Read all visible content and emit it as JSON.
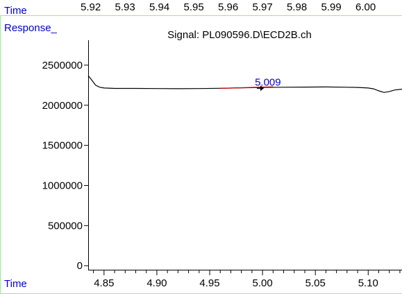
{
  "top_axis": {
    "label": "Time",
    "ticks": [
      "5.92",
      "5.93",
      "5.94",
      "5.95",
      "5.96",
      "5.97",
      "5.98",
      "5.99",
      "6.00"
    ]
  },
  "colors": {
    "frame": "#90ee90",
    "axis_label": "#0000cd",
    "trace": "#000000",
    "baseline": "#cc0000",
    "peak_label": "#0000cd"
  },
  "chart_data": {
    "type": "line",
    "title": "Signal: PL090596.D\\ECD2B.ch",
    "xlabel": "Time",
    "ylabel": "Response_",
    "xlim": [
      4.835,
      5.132
    ],
    "ylim": [
      -50000,
      2750000
    ],
    "x_ticks": [
      4.85,
      4.9,
      4.95,
      5.0,
      5.05,
      5.1
    ],
    "x_tick_labels": [
      "4.85",
      "4.90",
      "4.95",
      "5.00",
      "5.05",
      "5.10"
    ],
    "x_minor_step": 0.01,
    "y_ticks": [
      0,
      500000,
      1000000,
      1500000,
      2000000,
      2500000
    ],
    "y_tick_labels": [
      "0",
      "500000",
      "1000000",
      "1500000",
      "2000000",
      "2500000"
    ],
    "grid": false,
    "series": [
      {
        "x": [
          4.835,
          4.838,
          4.842,
          4.846,
          4.85,
          4.86,
          4.87,
          4.88,
          4.9,
          4.92,
          4.94,
          4.96,
          4.98,
          5.0,
          5.02,
          5.04,
          5.06,
          5.08,
          5.09,
          5.1,
          5.105,
          5.11,
          5.115,
          5.12,
          5.125,
          5.132
        ],
        "y": [
          2370000,
          2320000,
          2250000,
          2225000,
          2215000,
          2210000,
          2210000,
          2210000,
          2208000,
          2206000,
          2208000,
          2212000,
          2218000,
          2222000,
          2225000,
          2226000,
          2228000,
          2225000,
          2222000,
          2215000,
          2205000,
          2180000,
          2160000,
          2170000,
          2190000,
          2200000
        ]
      }
    ],
    "baseline": {
      "x": [
        4.96,
        5.01
      ],
      "y": [
        2210000,
        2230000
      ]
    },
    "peak": {
      "label": "5.009",
      "x": 4.998,
      "y": 2212000
    }
  }
}
